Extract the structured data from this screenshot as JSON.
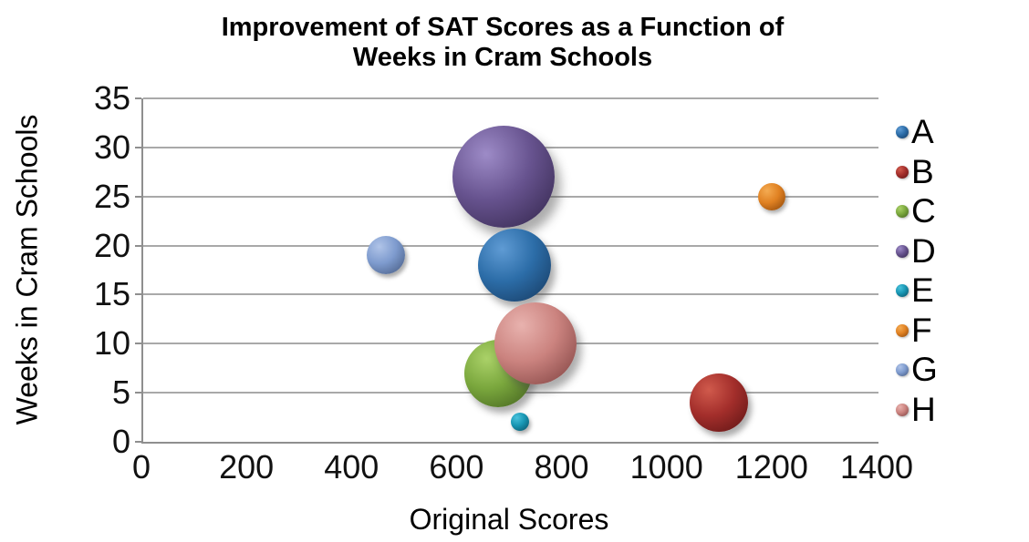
{
  "title": {
    "line1": "Improvement of SAT Scores as a Function of",
    "line2": "Weeks in Cram Schools"
  },
  "colors": {
    "gridline": "#a9a9a9",
    "axis_line": "#8f8f8f",
    "text": "#000000",
    "background": "#ffffff"
  },
  "chart_data": {
    "type": "bubble",
    "title": "Improvement of SAT Scores as a Function of Weeks in Cram Schools",
    "xlabel": "Original Scores",
    "ylabel": "Weeks in Cram Schools",
    "xlim": [
      0,
      1400
    ],
    "ylim": [
      0,
      35
    ],
    "x_ticks": [
      0,
      200,
      400,
      600,
      800,
      1000,
      1200,
      1400
    ],
    "y_ticks": [
      0,
      5,
      10,
      15,
      20,
      25,
      30,
      35
    ],
    "grid": "horizontal",
    "legend_position": "right",
    "series": [
      {
        "name": "A",
        "x": 710,
        "y": 18,
        "radius_px": 40,
        "colors": {
          "light": "#5f9bd4",
          "base": "#2c6da8",
          "dark": "#16395f"
        }
      },
      {
        "name": "B",
        "x": 1100,
        "y": 4,
        "radius_px": 32,
        "colors": {
          "light": "#d05a4c",
          "base": "#a32e2b",
          "dark": "#5c1414"
        }
      },
      {
        "name": "C",
        "x": 680,
        "y": 7,
        "radius_px": 37,
        "colors": {
          "light": "#aad168",
          "base": "#7aa73d",
          "dark": "#42601e"
        }
      },
      {
        "name": "D",
        "x": 690,
        "y": 27,
        "radius_px": 56,
        "colors": {
          "light": "#9d8bc7",
          "base": "#67538f",
          "dark": "#32254a"
        }
      },
      {
        "name": "E",
        "x": 720,
        "y": 2,
        "radius_px": 10,
        "colors": {
          "light": "#49c2dc",
          "base": "#1795b2",
          "dark": "#0b4f63"
        }
      },
      {
        "name": "F",
        "x": 1200,
        "y": 25,
        "radius_px": 15,
        "colors": {
          "light": "#f4ab52",
          "base": "#e08122",
          "dark": "#8a4509"
        }
      },
      {
        "name": "G",
        "x": 465,
        "y": 19,
        "radius_px": 21,
        "colors": {
          "light": "#b0c4e8",
          "base": "#7e9bce",
          "dark": "#44597f"
        }
      },
      {
        "name": "H",
        "x": 750,
        "y": 10,
        "radius_px": 45,
        "colors": {
          "light": "#e8b2ae",
          "base": "#cb837f",
          "dark": "#7d403f"
        }
      }
    ],
    "draw_order": [
      "D",
      "A",
      "C",
      "H",
      "B",
      "G",
      "F",
      "E"
    ],
    "legend_order": [
      "A",
      "B",
      "C",
      "D",
      "E",
      "F",
      "G",
      "H"
    ]
  }
}
